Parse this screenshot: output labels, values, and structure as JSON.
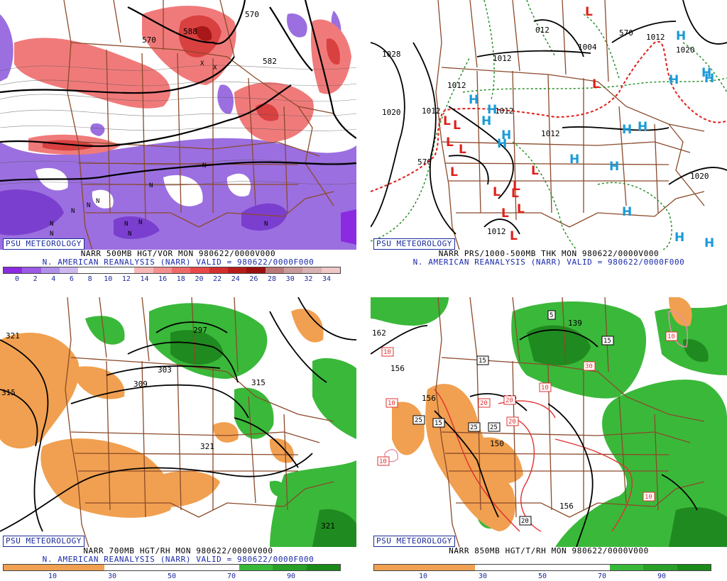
{
  "panels": [
    {
      "id": "500mb",
      "brand": "PSU METEOROLOGY",
      "caption_line1": "NARR 500MB HGT/VOR MON 980622/0000V000",
      "caption_line2": "N. AMERICAN REANALYSIS (NARR) VALID = 980622/0000F000",
      "colorbar_ticks": [
        "0",
        "2",
        "4",
        "6",
        "8",
        "10",
        "12",
        "14",
        "16",
        "18",
        "20",
        "22",
        "24",
        "26",
        "28",
        "30",
        "32",
        "34"
      ],
      "colorbar_colors": [
        "#8a2be2",
        "#9b59e6",
        "#b090ea",
        "#cdb8f2",
        "#ffffff",
        "#ffffff",
        "#ffffff",
        "#f7b8b8",
        "#f29090",
        "#ee6a6a",
        "#e84848",
        "#d42e2e",
        "#b81a1a",
        "#9a0e0e",
        "#bb7777",
        "#c89a9a",
        "#d8b2b2",
        "#f0c8c8"
      ],
      "contour_labels": [
        "570",
        "570",
        "582",
        "582",
        "588"
      ],
      "vort_center_labels": [
        "N",
        "N",
        "N",
        "N",
        "N",
        "N",
        "N",
        "N",
        "N",
        "N",
        "N",
        "X",
        "X"
      ]
    },
    {
      "id": "pressure",
      "brand": "PSU METEOROLOGY",
      "caption_line1": "NARR PRS/1000-500MB THK MON 980622/0000V000",
      "caption_line2": "N. AMERICAN REANALYSIS (NARR) VALID = 980622/0000F000",
      "isobar_labels": [
        "1028",
        "1020",
        "1012",
        "1012",
        "1012",
        "1012",
        "1004",
        "1012",
        "1020",
        "1020",
        "1012",
        "012",
        "1012"
      ],
      "thickness_labels": [
        "570",
        "570"
      ],
      "high_symbol": "H",
      "low_symbol": "L",
      "high_color": "#1a9ad8",
      "low_color": "#e0201a"
    },
    {
      "id": "700mb",
      "brand": "PSU METEOROLOGY",
      "caption_line1": "NARR 700MB HGT/RH MON 980622/0000V000",
      "caption_line2": "N. AMERICAN REANALYSIS (NARR) VALID = 980622/0000F000",
      "colorbar_ticks": [
        "10",
        "30",
        "50",
        "70",
        "90"
      ],
      "colorbar_colors": [
        "#f0a050",
        "#f0a050",
        "#f0a050",
        "#ffffff",
        "#ffffff",
        "#ffffff",
        "#ffffff",
        "#38b838",
        "#28a028",
        "#1a8a1a"
      ],
      "contour_labels": [
        "321",
        "297",
        "303",
        "309",
        "315",
        "315",
        "321",
        "321"
      ]
    },
    {
      "id": "850mb",
      "brand": "PSU METEOROLOGY",
      "caption_line1": "NARR 850MB HGT/T/RH MON 980622/0000V000",
      "caption_line2": "",
      "colorbar_ticks": [
        "10",
        "30",
        "50",
        "70",
        "90"
      ],
      "colorbar_colors": [
        "#f0a050",
        "#f0a050",
        "#f0a050",
        "#ffffff",
        "#ffffff",
        "#ffffff",
        "#ffffff",
        "#38b838",
        "#28a028",
        "#1a8a1a"
      ],
      "height_labels": [
        "162",
        "156",
        "156",
        "150",
        "150",
        "156",
        "139"
      ],
      "temp_labels": [
        "5",
        "15",
        "15",
        "15",
        "25",
        "25",
        "25",
        "20",
        "20",
        "20",
        "30",
        "10",
        "10",
        "10",
        "10",
        "10",
        "10",
        "20"
      ]
    }
  ]
}
